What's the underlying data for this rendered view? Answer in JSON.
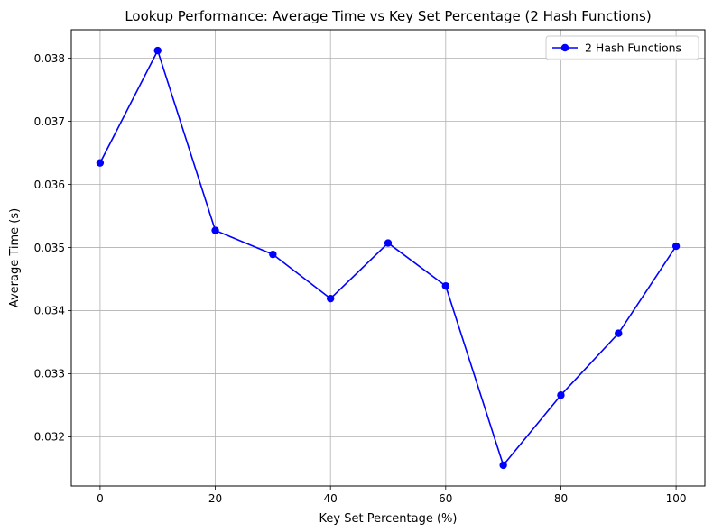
{
  "chart_data": {
    "type": "line",
    "title": "Lookup Performance: Average Time vs Key Set Percentage (2 Hash Functions)",
    "xlabel": "Key Set Percentage (%)",
    "ylabel": "Average Time (s)",
    "xlim": [
      -5,
      105
    ],
    "ylim": [
      0.03122,
      0.03845
    ],
    "xticks": [
      0,
      20,
      40,
      60,
      80,
      100
    ],
    "yticks": [
      0.032,
      0.033,
      0.034,
      0.035,
      0.036,
      0.037,
      0.038
    ],
    "xtick_labels": [
      "0",
      "20",
      "40",
      "60",
      "80",
      "100"
    ],
    "ytick_labels": [
      "0.032",
      "0.033",
      "0.034",
      "0.035",
      "0.036",
      "0.037",
      "0.038"
    ],
    "grid": true,
    "legend_position": "top-right",
    "x": [
      0,
      10,
      20,
      30,
      40,
      50,
      60,
      70,
      80,
      90,
      100
    ],
    "series": [
      {
        "name": "2 Hash Functions",
        "color": "#0000ff",
        "marker": "circle",
        "values": [
          0.03634,
          0.03812,
          0.03527,
          0.03489,
          0.03419,
          0.03507,
          0.03439,
          0.03155,
          0.03266,
          0.03364,
          0.03502
        ]
      }
    ]
  }
}
